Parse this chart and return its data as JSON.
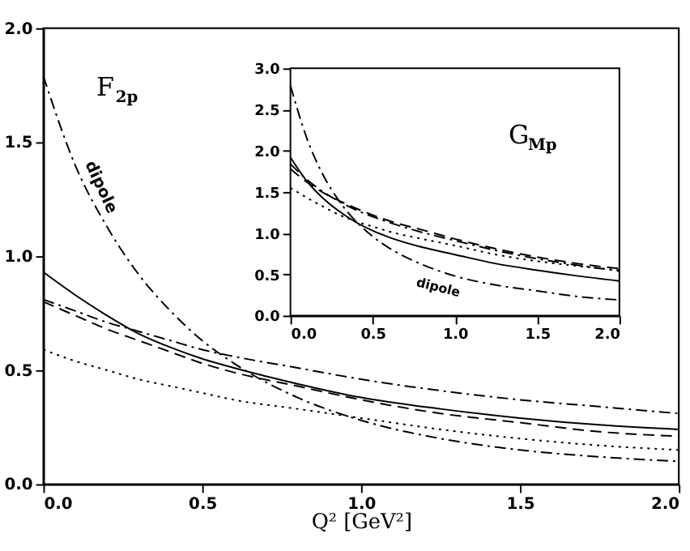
{
  "chart_data": [
    {
      "type": "line",
      "xlabel": "Q² [GeV²]",
      "xlim": [
        0,
        2
      ],
      "ylim": [
        0,
        2
      ],
      "xticks": [
        {
          "value": 0,
          "label": "0.0"
        },
        {
          "value": 0.5,
          "label": "0.5"
        },
        {
          "value": 1,
          "label": "1.0"
        },
        {
          "value": 1.5,
          "label": "1.5"
        },
        {
          "value": 2,
          "label": "2.0"
        }
      ],
      "yticks": [
        {
          "value": 0,
          "label": "0.0"
        },
        {
          "value": 0.5,
          "label": "0.5"
        },
        {
          "value": 1,
          "label": "1.0"
        },
        {
          "value": 1.5,
          "label": "1.5"
        },
        {
          "value": 2,
          "label": "2.0"
        }
      ],
      "x": [
        0,
        0.1,
        0.2,
        0.3,
        0.4,
        0.5,
        0.6,
        0.8,
        1.0,
        1.25,
        1.5,
        1.75,
        2.0
      ],
      "series": [
        {
          "color": "#000000",
          "line_style": "solid",
          "values": [
            0.93,
            0.83,
            0.74,
            0.66,
            0.6,
            0.55,
            0.51,
            0.44,
            0.38,
            0.33,
            0.29,
            0.26,
            0.24
          ]
        },
        {
          "color": "#000000",
          "line_style": "dashed",
          "values": [
            0.8,
            0.74,
            0.68,
            0.63,
            0.58,
            0.53,
            0.49,
            0.43,
            0.37,
            0.31,
            0.27,
            0.23,
            0.21
          ]
        },
        {
          "color": "#000000",
          "line_style": "dashdot",
          "values": [
            0.81,
            0.76,
            0.71,
            0.67,
            0.63,
            0.59,
            0.56,
            0.51,
            0.46,
            0.41,
            0.37,
            0.34,
            0.31
          ]
        },
        {
          "color": "#000000",
          "line_style": "dotted",
          "values": [
            0.59,
            0.54,
            0.5,
            0.46,
            0.43,
            0.4,
            0.37,
            0.33,
            0.29,
            0.24,
            0.2,
            0.17,
            0.15
          ]
        },
        {
          "color": "#000000",
          "line_style": "dashdot",
          "values": [
            1.79,
            1.4,
            1.13,
            0.92,
            0.76,
            0.63,
            0.53,
            0.38,
            0.28,
            0.2,
            0.15,
            0.12,
            0.1
          ]
        }
      ],
      "annotations": [
        "F$_{2p}$",
        "dipole"
      ]
    },
    {
      "type": "line",
      "xlim": [
        0,
        2
      ],
      "ylim": [
        0,
        3
      ],
      "xticks": [
        {
          "value": 0,
          "label": "0.0"
        },
        {
          "value": 0.5,
          "label": "0.5"
        },
        {
          "value": 1,
          "label": "1.0"
        },
        {
          "value": 1.5,
          "label": "1.5"
        },
        {
          "value": 2,
          "label": "2.0"
        }
      ],
      "yticks": [
        {
          "value": 0,
          "label": "0.0"
        },
        {
          "value": 0.5,
          "label": "0.5"
        },
        {
          "value": 1,
          "label": "1.0"
        },
        {
          "value": 1.5,
          "label": "1.5"
        },
        {
          "value": 2,
          "label": "2.0"
        },
        {
          "value": 2.5,
          "label": "2.5"
        },
        {
          "value": 3,
          "label": "3.0"
        }
      ],
      "x": [
        0,
        0.1,
        0.2,
        0.3,
        0.4,
        0.5,
        0.6,
        0.8,
        1.0,
        1.25,
        1.5,
        1.75,
        2.0
      ],
      "series": [
        {
          "color": "#000000",
          "line_style": "solid",
          "values": [
            1.92,
            1.63,
            1.42,
            1.26,
            1.13,
            1.03,
            0.95,
            0.83,
            0.74,
            0.63,
            0.55,
            0.48,
            0.42
          ]
        },
        {
          "color": "#000000",
          "line_style": "dashed",
          "values": [
            1.78,
            1.62,
            1.49,
            1.39,
            1.3,
            1.22,
            1.15,
            1.04,
            0.93,
            0.81,
            0.71,
            0.63,
            0.57
          ]
        },
        {
          "color": "#000000",
          "line_style": "dashdot",
          "values": [
            1.84,
            1.65,
            1.5,
            1.38,
            1.28,
            1.2,
            1.13,
            1.01,
            0.91,
            0.79,
            0.69,
            0.61,
            0.54
          ]
        },
        {
          "color": "#000000",
          "line_style": "dotted",
          "values": [
            1.55,
            1.43,
            1.32,
            1.22,
            1.14,
            1.08,
            1.02,
            0.93,
            0.85,
            0.74,
            0.66,
            0.6,
            0.55
          ]
        },
        {
          "color": "#000000",
          "line_style": "dashdot",
          "values": [
            2.79,
            2.15,
            1.7,
            1.38,
            1.14,
            0.96,
            0.82,
            0.62,
            0.48,
            0.37,
            0.3,
            0.23,
            0.19
          ]
        }
      ],
      "annotations": [
        "G$_{Mp}$",
        "dipole"
      ]
    }
  ]
}
